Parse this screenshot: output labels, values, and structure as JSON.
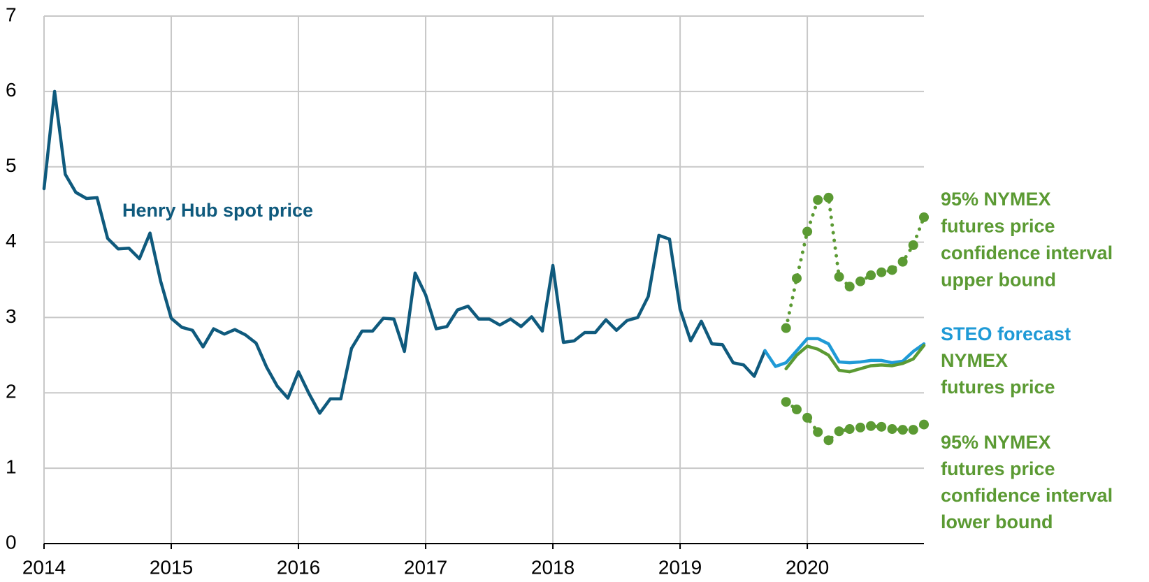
{
  "chart_data": {
    "type": "line",
    "xlim": [
      2014,
      2020.917
    ],
    "xticks": [
      2014,
      2015,
      2016,
      2017,
      2018,
      2019,
      2020
    ],
    "ylim": [
      0,
      7
    ],
    "yticks": [
      0,
      1,
      2,
      3,
      4,
      5,
      6,
      7
    ],
    "grid": true,
    "series": [
      {
        "name": "Henry Hub spot price",
        "color": "#0f5a7d",
        "style": "solid",
        "x": [
          2014,
          2014.083,
          2014.167,
          2014.25,
          2014.333,
          2014.417,
          2014.5,
          2014.583,
          2014.667,
          2014.75,
          2014.833,
          2014.917,
          2015,
          2015.083,
          2015.167,
          2015.25,
          2015.333,
          2015.417,
          2015.5,
          2015.583,
          2015.667,
          2015.75,
          2015.833,
          2015.917,
          2016,
          2016.083,
          2016.167,
          2016.25,
          2016.333,
          2016.417,
          2016.5,
          2016.583,
          2016.667,
          2016.75,
          2016.833,
          2016.917,
          2017,
          2017.083,
          2017.167,
          2017.25,
          2017.333,
          2017.417,
          2017.5,
          2017.583,
          2017.667,
          2017.75,
          2017.833,
          2017.917,
          2018,
          2018.083,
          2018.167,
          2018.25,
          2018.333,
          2018.417,
          2018.5,
          2018.583,
          2018.667,
          2018.75,
          2018.833,
          2018.917,
          2019,
          2019.083,
          2019.167,
          2019.25,
          2019.333,
          2019.417,
          2019.5,
          2019.583,
          2019.667
        ],
        "values": [
          4.71,
          6.0,
          4.9,
          4.66,
          4.58,
          4.59,
          4.05,
          3.91,
          3.92,
          3.78,
          4.12,
          3.48,
          2.99,
          2.87,
          2.83,
          2.61,
          2.85,
          2.78,
          2.84,
          2.77,
          2.66,
          2.34,
          2.09,
          1.93,
          2.28,
          1.99,
          1.73,
          1.92,
          1.92,
          2.59,
          2.82,
          2.82,
          2.99,
          2.98,
          2.55,
          3.59,
          3.3,
          2.85,
          2.88,
          3.1,
          3.15,
          2.98,
          2.98,
          2.9,
          2.98,
          2.88,
          3.01,
          2.82,
          3.69,
          2.67,
          2.69,
          2.8,
          2.8,
          2.97,
          2.83,
          2.96,
          3.0,
          3.28,
          4.09,
          4.04,
          3.11,
          2.69,
          2.95,
          2.65,
          2.64,
          2.4,
          2.37,
          2.22,
          2.56
        ]
      },
      {
        "name": "STEO forecast",
        "color": "#1f9ad6",
        "style": "solid",
        "x": [
          2019.667,
          2019.75,
          2019.833,
          2019.917,
          2020,
          2020.083,
          2020.167,
          2020.25,
          2020.333,
          2020.417,
          2020.5,
          2020.583,
          2020.667,
          2020.75,
          2020.833,
          2020.917
        ],
        "values": [
          2.56,
          2.35,
          2.4,
          2.56,
          2.72,
          2.72,
          2.65,
          2.41,
          2.4,
          2.41,
          2.43,
          2.43,
          2.4,
          2.42,
          2.55,
          2.65
        ]
      },
      {
        "name": "NYMEX futures price",
        "color": "#5b9a33",
        "style": "solid",
        "x": [
          2019.833,
          2019.917,
          2020,
          2020.083,
          2020.167,
          2020.25,
          2020.333,
          2020.417,
          2020.5,
          2020.583,
          2020.667,
          2020.75,
          2020.833,
          2020.917
        ],
        "values": [
          2.32,
          2.5,
          2.62,
          2.58,
          2.5,
          2.3,
          2.28,
          2.32,
          2.36,
          2.37,
          2.36,
          2.39,
          2.45,
          2.63
        ]
      },
      {
        "name": "95% NYMEX futures price confidence interval upper bound",
        "color": "#5b9a33",
        "style": "dotted",
        "x": [
          2019.833,
          2019.917,
          2020,
          2020.083,
          2020.167,
          2020.25,
          2020.333,
          2020.417,
          2020.5,
          2020.583,
          2020.667,
          2020.75,
          2020.833,
          2020.917
        ],
        "values": [
          2.86,
          3.52,
          4.14,
          4.56,
          4.59,
          3.54,
          3.41,
          3.48,
          3.56,
          3.6,
          3.63,
          3.74,
          3.96,
          4.33
        ]
      },
      {
        "name": "95% NYMEX futures price confidence interval lower bound",
        "color": "#5b9a33",
        "style": "dotted",
        "x": [
          2019.833,
          2019.917,
          2020,
          2020.083,
          2020.167,
          2020.25,
          2020.333,
          2020.417,
          2020.5,
          2020.583,
          2020.667,
          2020.75,
          2020.833,
          2020.917
        ],
        "values": [
          1.88,
          1.78,
          1.67,
          1.48,
          1.37,
          1.49,
          1.52,
          1.54,
          1.56,
          1.55,
          1.52,
          1.51,
          1.51,
          1.58
        ]
      }
    ],
    "annotations": [
      {
        "lines": [
          "Henry Hub spot price"
        ],
        "color": "#0f5a7d"
      },
      {
        "lines": [
          "95% NYMEX",
          "futures price",
          "confidence interval",
          "upper bound"
        ],
        "color": "#5b9a33"
      },
      {
        "lines": [
          "STEO forecast"
        ],
        "color": "#1f9ad6"
      },
      {
        "lines": [
          "NYMEX",
          "futures price"
        ],
        "color": "#5b9a33"
      },
      {
        "lines": [
          "95% NYMEX",
          "futures price",
          "confidence interval",
          "lower bound"
        ],
        "color": "#5b9a33"
      }
    ]
  }
}
